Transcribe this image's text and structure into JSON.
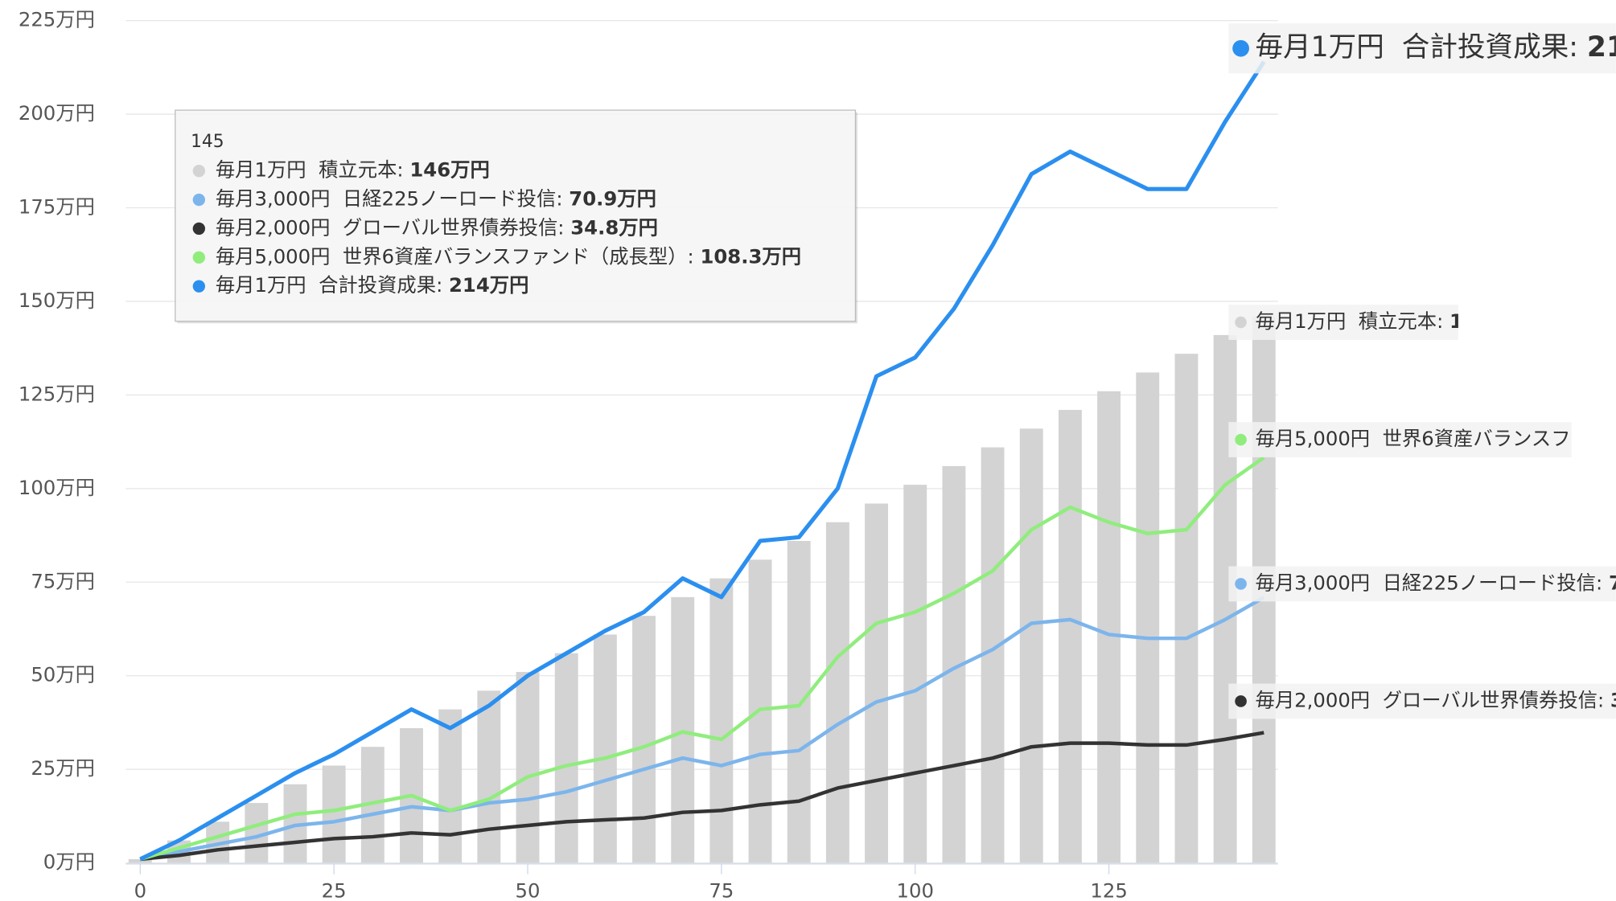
{
  "chart_data": {
    "type": "line",
    "x": [
      0,
      5,
      10,
      15,
      20,
      25,
      30,
      35,
      40,
      45,
      50,
      55,
      60,
      65,
      70,
      75,
      80,
      85,
      90,
      95,
      100,
      105,
      110,
      115,
      120,
      125,
      130,
      135,
      140,
      145
    ],
    "xlim": [
      0,
      147
    ],
    "xticks": [
      0,
      25,
      50,
      75,
      100,
      125
    ],
    "ylim": [
      0,
      225
    ],
    "yticks": [
      {
        "value": 0,
        "label": "0万円"
      },
      {
        "value": 25,
        "label": "25万円"
      },
      {
        "value": 50,
        "label": "50万円"
      },
      {
        "value": 75,
        "label": "75万円"
      },
      {
        "value": 100,
        "label": "100万円"
      },
      {
        "value": 125,
        "label": "125万円"
      },
      {
        "value": 150,
        "label": "150万円"
      },
      {
        "value": 175,
        "label": "175万円"
      },
      {
        "value": 200,
        "label": "200万円"
      },
      {
        "value": 225,
        "label": "225万円"
      }
    ],
    "grid": true,
    "series": [
      {
        "name": "毎月1万円  積立元本",
        "color": "#d3d3d3",
        "kind": "column",
        "values": [
          1,
          6,
          11,
          16,
          21,
          26,
          31,
          36,
          41,
          46,
          51,
          56,
          61,
          66,
          71,
          76,
          81,
          86,
          91,
          96,
          101,
          106,
          111,
          116,
          121,
          126,
          131,
          136,
          141,
          146
        ]
      },
      {
        "name": "毎月3,000円  日経225ノーロード投信",
        "color": "#7cb5ec",
        "values": [
          1,
          3,
          5,
          7,
          10,
          11,
          13,
          15,
          14,
          16,
          17,
          19,
          22,
          25,
          28,
          26,
          29,
          30,
          37,
          43,
          46,
          52,
          57,
          64,
          65,
          61,
          60,
          60,
          65,
          70.9
        ]
      },
      {
        "name": "毎月2,000円  グローバル世界債券投信",
        "color": "#333333",
        "values": [
          1,
          2,
          3.5,
          4.5,
          5.5,
          6.5,
          7,
          8,
          7.5,
          9,
          10,
          11,
          11.5,
          12,
          13.5,
          14,
          15.5,
          16.5,
          20,
          22,
          24,
          26,
          28,
          31,
          32,
          32,
          31.5,
          31.5,
          33,
          34.8
        ]
      },
      {
        "name": "毎月5,000円  世界6資産バランスファンド（成長型）",
        "color": "#90ed7d",
        "values": [
          1,
          4,
          7,
          10,
          13,
          14,
          16,
          18,
          14,
          17,
          23,
          26,
          28,
          31,
          35,
          33,
          41,
          42,
          55,
          64,
          67,
          72,
          78,
          89,
          95,
          91,
          88,
          89,
          101,
          108.3
        ]
      },
      {
        "name": "毎月1万円  合計投資成果",
        "color": "#2b8fef",
        "values": [
          1,
          6,
          12,
          18,
          24,
          29,
          35,
          41,
          36,
          42,
          50,
          56,
          62,
          67,
          76,
          71,
          86,
          87,
          100,
          130,
          135,
          148,
          165,
          184,
          190,
          185,
          180,
          180,
          198,
          214
        ]
      }
    ],
    "tooltip": {
      "x": 145,
      "separator": ": ",
      "labels": [
        "146万円",
        "70.9万円",
        "34.8万円",
        "108.3万円",
        "214万円"
      ]
    }
  }
}
